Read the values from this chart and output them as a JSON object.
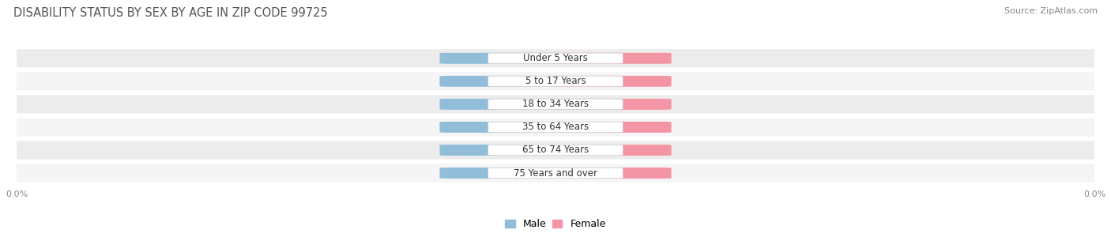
{
  "title": "DISABILITY STATUS BY SEX BY AGE IN ZIP CODE 99725",
  "source": "Source: ZipAtlas.com",
  "categories": [
    "Under 5 Years",
    "5 to 17 Years",
    "18 to 34 Years",
    "35 to 64 Years",
    "65 to 74 Years",
    "75 Years and over"
  ],
  "male_values": [
    0.0,
    0.0,
    0.0,
    0.0,
    0.0,
    0.0
  ],
  "female_values": [
    0.0,
    0.0,
    0.0,
    0.0,
    0.0,
    0.0
  ],
  "male_color": "#92bdd9",
  "female_color": "#f395a4",
  "male_label": "Male",
  "female_label": "Female",
  "title_fontsize": 10.5,
  "source_fontsize": 8,
  "axis_label_fontsize": 8,
  "category_fontsize": 8.5,
  "value_fontsize": 7.5,
  "background_color": "#ffffff",
  "row_colors": [
    "#ececec",
    "#f5f5f5",
    "#ececec",
    "#f5f5f5",
    "#ececec",
    "#f5f5f5"
  ]
}
